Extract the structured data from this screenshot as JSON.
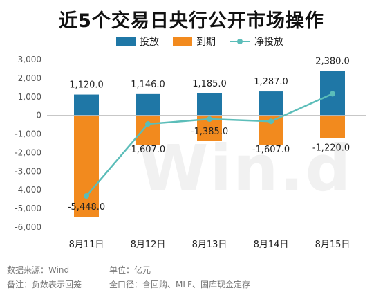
{
  "title": "近5个交易日央行公开市场操作",
  "legend": {
    "invest": "投放",
    "mature": "到期",
    "net": "净投放"
  },
  "watermark": "Win.d",
  "footer": {
    "source": "数据来源：Wind",
    "unit": "单位：亿元",
    "note": "备注：负数表示回笼",
    "scope": "全口径：含回购、MLF、国库现金定存"
  },
  "colors": {
    "invest": "#1f77a6",
    "mature": "#f28a1e",
    "net": "#5bbdb9"
  },
  "chart_data": {
    "type": "bar",
    "title": "近5个交易日央行公开市场操作",
    "categories": [
      "8月11日",
      "8月12日",
      "8月13日",
      "8月14日",
      "8月15日"
    ],
    "series": [
      {
        "name": "投放",
        "kind": "bar",
        "values": [
          1120.0,
          1146.0,
          1185.0,
          1287.0,
          2380.0
        ],
        "labels": [
          "1,120.0",
          "1,146.0",
          "1,185.0",
          "1,287.0",
          "2,380.0"
        ]
      },
      {
        "name": "到期",
        "kind": "bar",
        "values": [
          -5448.0,
          -1607.0,
          -1385.0,
          -1607.0,
          -1220.0
        ],
        "labels": [
          "-5,448.0",
          "-1,607.0",
          "-1,385.0",
          "-1,607.0",
          "-1,220.0"
        ]
      },
      {
        "name": "净投放",
        "kind": "line",
        "values": [
          -4328.0,
          -461.0,
          -200.0,
          -320.0,
          1160.0
        ]
      }
    ],
    "ylim": [
      -6000,
      3000
    ],
    "yticks": [
      3000,
      2000,
      1000,
      0,
      -1000,
      -2000,
      -3000,
      -4000,
      -5000,
      -6000
    ],
    "ytick_labels": [
      "3,000",
      "2,000",
      "1,000",
      "0",
      "-1,000",
      "-2,000",
      "-3,000",
      "-4,000",
      "-5,000",
      "-6,000"
    ],
    "stacked": true,
    "grid": false,
    "legend_position": "top"
  }
}
